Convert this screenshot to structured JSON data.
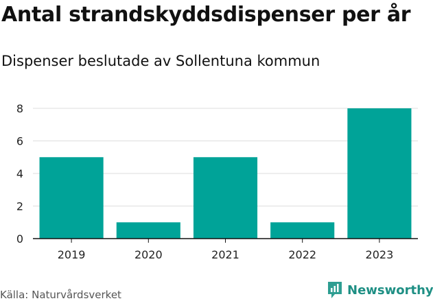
{
  "header": {
    "title": "Antal strandskyddsdispenser per år",
    "subtitle": "Dispenser beslutade av Sollentuna kommun"
  },
  "footer": {
    "source": "Källa: Naturvårdsverket",
    "logo_text": "Newsworthy"
  },
  "colors": {
    "bar": "#00a398",
    "grid": "#dddddd",
    "axis": "#111111",
    "logo": "#1e8f84"
  },
  "chart_data": {
    "type": "bar",
    "categories": [
      "2019",
      "2020",
      "2021",
      "2022",
      "2023"
    ],
    "values": [
      5,
      1,
      5,
      1,
      8
    ],
    "title": "Antal strandskyddsdispenser per år",
    "subtitle": "Dispenser beslutade av Sollentuna kommun",
    "xlabel": "",
    "ylabel": "",
    "ylim": [
      0,
      8
    ],
    "yticks": [
      0,
      2,
      4,
      6,
      8
    ],
    "grid": true,
    "legend": "none"
  }
}
